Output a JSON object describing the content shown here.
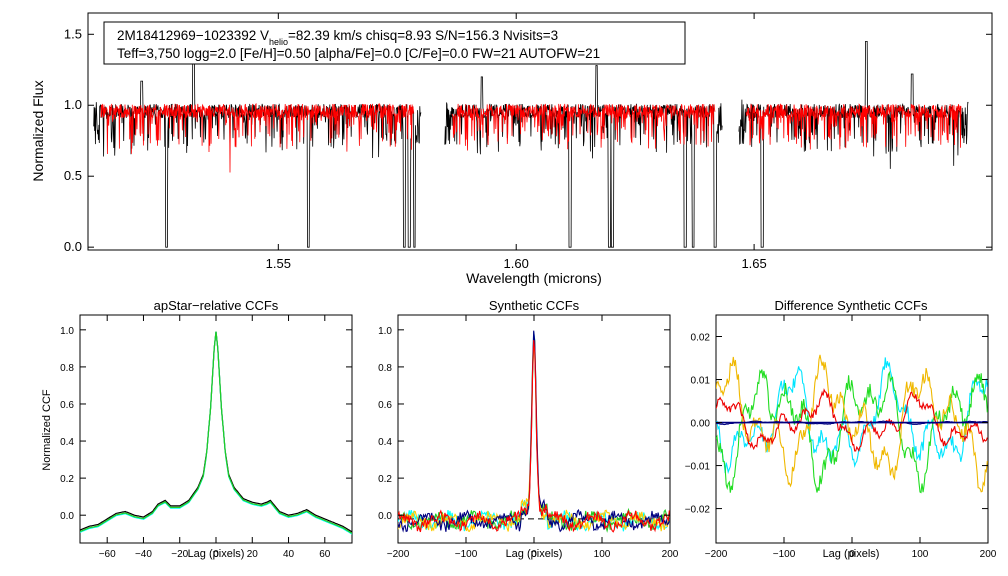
{
  "chart_data": [
    {
      "id": "spectrum",
      "type": "line",
      "xlabel": "Wavelength (microns)",
      "ylabel": "Normalized Flux",
      "xlim": [
        1.51,
        1.7
      ],
      "ylim": [
        -0.02,
        1.65
      ],
      "xticks": [
        1.55,
        1.6,
        1.65
      ],
      "xtick_labels": [
        "1.55",
        "1.60",
        "1.65"
      ],
      "yticks": [
        0.0,
        0.5,
        1.0,
        1.5
      ],
      "ytick_labels": [
        "0.0",
        "0.5",
        "1.0",
        "1.5"
      ],
      "legend": {
        "line1_prefix": "2M18412969−1023392  V",
        "line1_sub": "helio",
        "line1_suffix": "=82.39 km/s  chisq=8.93  S/N=156.3  Nvisits=3",
        "line2": "Teff=3,750 logg=2.0 [Fe/H]=0.50 [alpha/Fe]=0.0 [C/Fe]=0.0 FW=21 AUTOFW=21"
      },
      "chips": [
        [
          1.5112,
          1.58
        ],
        [
          1.585,
          1.6433
        ],
        [
          1.6468,
          1.695
        ]
      ],
      "series": [
        {
          "name": "observed",
          "color": "#000000",
          "seed": 7
        },
        {
          "name": "model",
          "color": "#ff0000",
          "seed": 11
        }
      ],
      "observed_deep_lines": [
        {
          "x": 1.5112,
          "y": 0.02
        },
        {
          "x": 1.5265,
          "y": 0.0
        },
        {
          "x": 1.5563,
          "y": 0.0
        },
        {
          "x": 1.5765,
          "y": 0.0
        },
        {
          "x": 1.5775,
          "y": 0.0
        },
        {
          "x": 1.5787,
          "y": 0.0
        },
        {
          "x": 1.6113,
          "y": 0.0
        },
        {
          "x": 1.6196,
          "y": 0.0
        },
        {
          "x": 1.6202,
          "y": 0.0
        },
        {
          "x": 1.6355,
          "y": 0.0
        },
        {
          "x": 1.6372,
          "y": 0.0
        },
        {
          "x": 1.6418,
          "y": 0.0
        },
        {
          "x": 1.6425,
          "y": 0.0
        },
        {
          "x": 1.6517,
          "y": 0.0
        }
      ],
      "observed_spikes": [
        {
          "x": 1.5213,
          "y": 1.17
        },
        {
          "x": 1.5322,
          "y": 1.32
        },
        {
          "x": 1.5928,
          "y": 1.2
        },
        {
          "x": 1.6169,
          "y": 1.28
        },
        {
          "x": 1.6425,
          "y": 1.23
        },
        {
          "x": 1.6736,
          "y": 1.45
        },
        {
          "x": 1.6832,
          "y": 1.22
        },
        {
          "x": 1.6943,
          "y": 1.3
        }
      ]
    },
    {
      "id": "apstar-ccf",
      "type": "line",
      "title": "apStar−relative CCFs",
      "xlabel": "Lag (pixels)",
      "ylabel": "Normalized CCF",
      "xlim": [
        -75,
        75
      ],
      "ylim": [
        -0.15,
        1.08
      ],
      "xticks": [
        -60,
        -40,
        -20,
        0,
        20,
        40,
        60
      ],
      "xtick_labels": [
        "−60",
        "−40",
        "−20",
        "0",
        "20",
        "40",
        "60"
      ],
      "yticks": [
        0.0,
        0.2,
        0.4,
        0.6,
        0.8,
        1.0
      ],
      "ytick_labels": [
        "0.0",
        "0.2",
        "0.4",
        "0.6",
        "0.8",
        "1.0"
      ],
      "series": [
        {
          "name": "combined",
          "color": "#000000"
        },
        {
          "name": "visit-1",
          "color": "#00ffff"
        },
        {
          "name": "visit-2",
          "color": "#22cc22"
        }
      ],
      "points_x": [
        -75,
        -70,
        -65,
        -60,
        -55,
        -50,
        -45,
        -40,
        -35,
        -32,
        -28,
        -25,
        -20,
        -15,
        -10,
        -7,
        -5,
        -3,
        -1,
        0,
        1,
        3,
        5,
        7,
        10,
        15,
        20,
        25,
        28,
        30,
        35,
        40,
        45,
        50,
        55,
        60,
        65,
        70,
        75
      ],
      "points_y": [
        -0.08,
        -0.06,
        -0.05,
        -0.02,
        0.01,
        0.02,
        0.0,
        -0.01,
        0.02,
        0.06,
        0.08,
        0.05,
        0.05,
        0.08,
        0.15,
        0.22,
        0.35,
        0.58,
        0.9,
        0.99,
        0.9,
        0.58,
        0.35,
        0.22,
        0.15,
        0.09,
        0.07,
        0.06,
        0.07,
        0.08,
        0.02,
        0.0,
        0.01,
        0.03,
        0.0,
        -0.02,
        -0.04,
        -0.06,
        -0.09
      ]
    },
    {
      "id": "synthetic-ccf",
      "type": "line",
      "title": "Synthetic CCFs",
      "xlabel": "Lag (pixels)",
      "xlim": [
        -200,
        200
      ],
      "ylim": [
        -0.15,
        1.08
      ],
      "xticks": [
        -200,
        -100,
        0,
        100,
        200
      ],
      "xtick_labels": [
        "−200",
        "−100",
        "0",
        "100",
        "200"
      ],
      "yticks": [
        0.0,
        0.2,
        0.4,
        0.6,
        0.8,
        1.0
      ],
      "ytick_labels": [
        "0.0",
        "0.2",
        "0.4",
        "0.6",
        "0.8",
        "1.0"
      ],
      "zero_line": -0.02,
      "peak": 1.0,
      "series": [
        {
          "name": "visit-a",
          "color": "#00ffff",
          "seed": 3
        },
        {
          "name": "visit-b",
          "color": "#22cc22",
          "seed": 5
        },
        {
          "name": "visit-c",
          "color": "#ffcc00",
          "seed": 9
        },
        {
          "name": "visit-d",
          "color": "#000080",
          "seed": 13
        },
        {
          "name": "visit-e",
          "color": "#ff0000",
          "seed": 17
        }
      ]
    },
    {
      "id": "difference-ccf",
      "type": "line",
      "title": "Difference Synthetic CCFs",
      "xlabel": "Lag (pixels)",
      "xlim": [
        -200,
        200
      ],
      "ylim": [
        -0.028,
        0.025
      ],
      "xticks": [
        -200,
        -100,
        0,
        100,
        200
      ],
      "xtick_labels": [
        "−200",
        "−100",
        "0",
        "100",
        "200"
      ],
      "yticks": [
        -0.02,
        -0.01,
        0.0,
        0.01,
        0.02
      ],
      "ytick_labels": [
        "−0.02",
        "−0.01",
        "0.00",
        "0.01",
        "0.02"
      ],
      "zero_line": 0.0,
      "series": [
        {
          "name": "diff-cyan",
          "color": "#00e5ff",
          "seed": 21,
          "amp": 0.013
        },
        {
          "name": "diff-green",
          "color": "#22dd22",
          "seed": 23,
          "amp": 0.015
        },
        {
          "name": "diff-yellow",
          "color": "#f0b800",
          "seed": 29,
          "amp": 0.015
        },
        {
          "name": "diff-red",
          "color": "#ee0000",
          "seed": 31,
          "amp": 0.007
        },
        {
          "name": "diff-navy",
          "color": "#000080",
          "seed": 37,
          "amp": 0.0004
        }
      ]
    }
  ]
}
